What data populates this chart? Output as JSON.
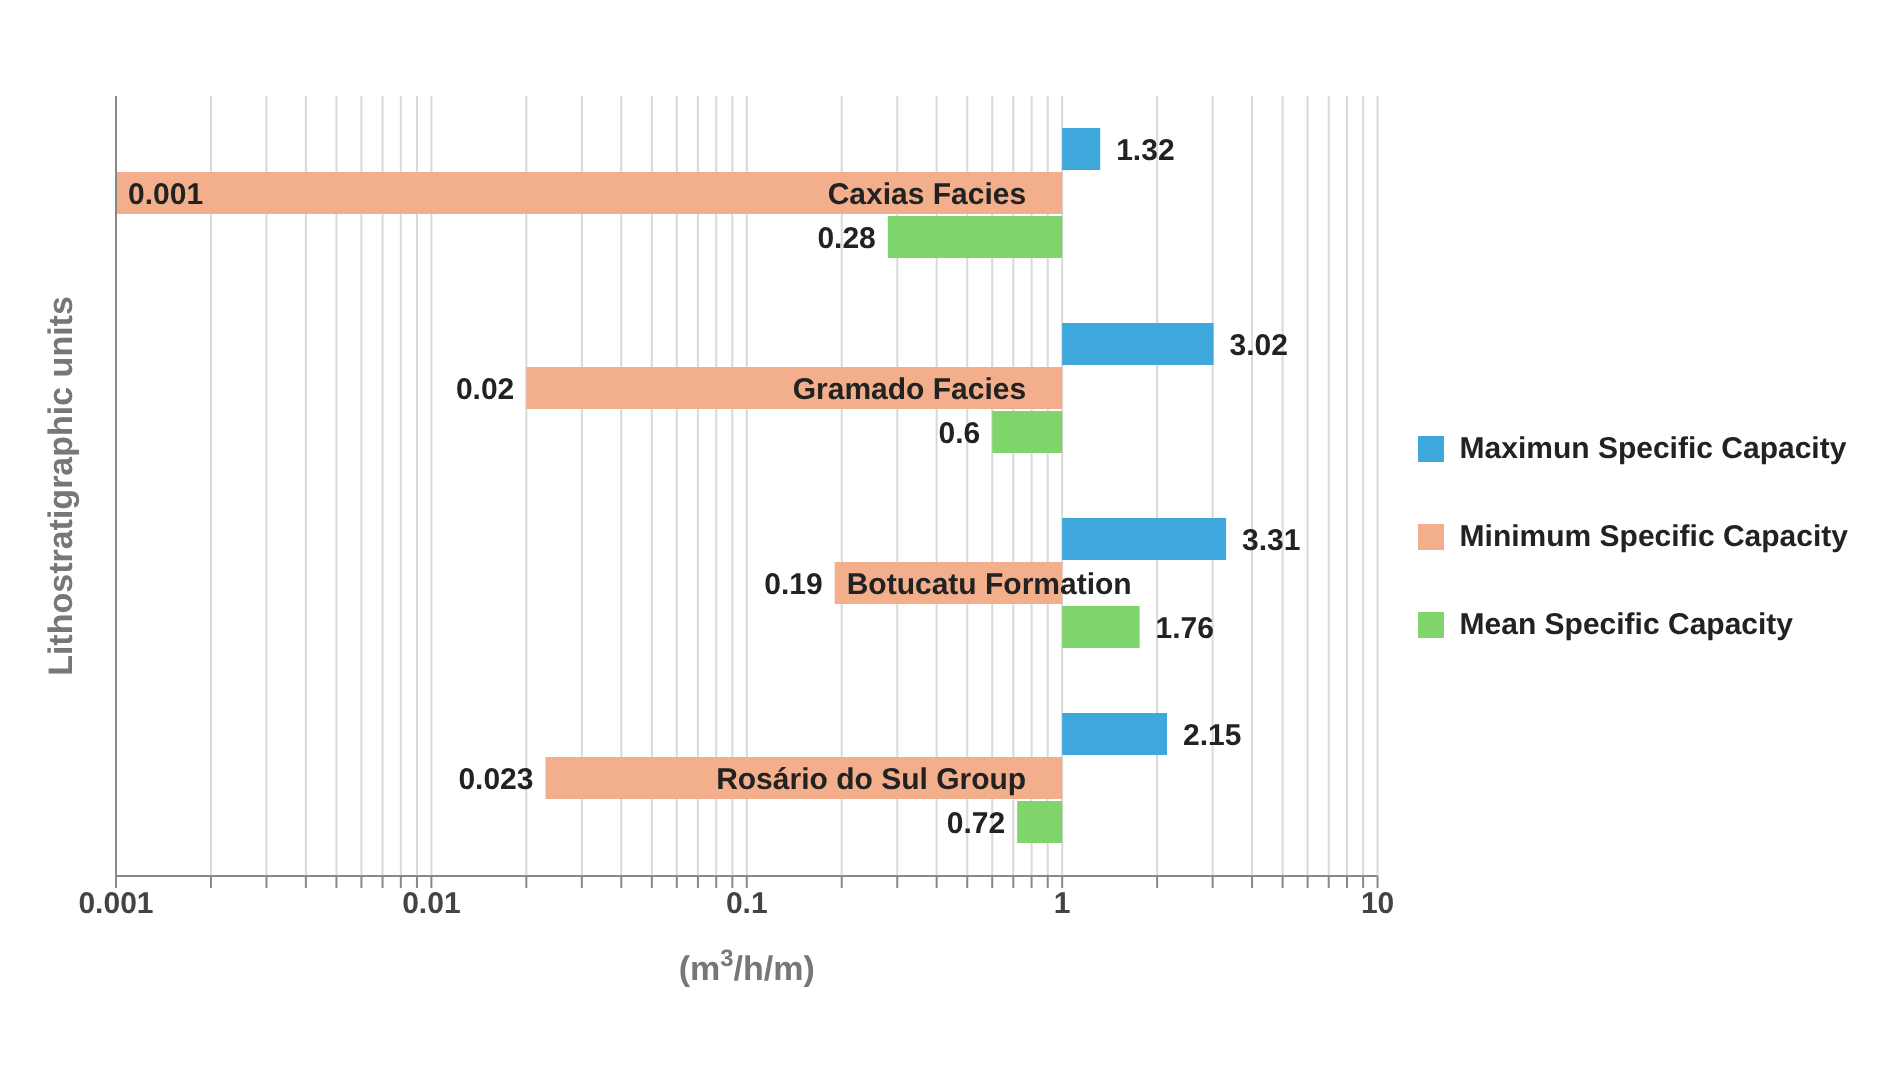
{
  "chart_data": {
    "type": "bar",
    "orientation": "horizontal",
    "log": "x",
    "categories": [
      "Caxias Facies",
      "Gramado Facies",
      "Botucatu Formation",
      "Rosário do Sul Group"
    ],
    "series": [
      {
        "name": "Maximun Specific Capacity",
        "color": "#3ea8dc",
        "base": [
          1,
          1,
          1,
          1
        ],
        "values": [
          0.32,
          2.02,
          2.31,
          1.15
        ],
        "value_labels": [
          "1.32",
          "3.02",
          "3.31",
          "2.15"
        ]
      },
      {
        "name": "Minimum Specific Capacity",
        "color": "#f3ae8c",
        "base": [
          1,
          1,
          1,
          1
        ],
        "values": [
          -0.999,
          -0.98,
          -0.81,
          -0.977
        ],
        "value_labels": [
          "0.001",
          "0.02",
          "0.19",
          "0.023"
        ]
      },
      {
        "name": "Mean Specific Capacity",
        "color": "#7fd46b",
        "base": [
          1,
          1,
          1,
          1
        ],
        "values": [
          -0.72,
          -0.4,
          0.76,
          -0.28
        ],
        "value_labels": [
          "0.28",
          "0.6",
          "1.76",
          "0.72"
        ]
      }
    ],
    "xlim": [
      0.001,
      10
    ],
    "xticks": [
      0.001,
      {
        "value": 0.002,
        "label": null
      },
      {
        "value": 0.003,
        "label": null
      },
      {
        "value": 0.004,
        "label": null
      },
      {
        "value": 0.005,
        "label": null
      },
      {
        "value": 0.006,
        "label": null
      },
      {
        "value": 0.007,
        "label": null
      },
      {
        "value": 0.008,
        "label": null
      },
      {
        "value": 0.009,
        "label": null
      },
      0.01,
      {
        "value": 0.02,
        "label": null
      },
      {
        "value": 0.03,
        "label": null
      },
      {
        "value": 0.04,
        "label": null
      },
      {
        "value": 0.05,
        "label": null
      },
      {
        "value": 0.06,
        "label": null
      },
      {
        "value": 0.07,
        "label": null
      },
      {
        "value": 0.08,
        "label": null
      },
      {
        "value": 0.09,
        "label": null
      },
      0.1,
      {
        "value": 0.2,
        "label": null
      },
      {
        "value": 0.3,
        "label": null
      },
      {
        "value": 0.4,
        "label": null
      },
      {
        "value": 0.5,
        "label": null
      },
      {
        "value": 0.6,
        "label": null
      },
      {
        "value": 0.7,
        "label": null
      },
      {
        "value": 0.8,
        "label": null
      },
      {
        "value": 0.9,
        "label": null
      },
      1,
      {
        "value": 2,
        "label": null
      },
      {
        "value": 3,
        "label": null
      },
      {
        "value": 4,
        "label": null
      },
      {
        "value": 5,
        "label": null
      },
      {
        "value": 6,
        "label": null
      },
      {
        "value": 7,
        "label": null
      },
      {
        "value": 8,
        "label": null
      },
      {
        "value": 9,
        "label": null
      },
      10
    ],
    "xlabel": "(m$^{3}$/h/m)",
    "ylabel": "Lithostratigraphic units",
    "grid": "x",
    "legend": "right"
  }
}
